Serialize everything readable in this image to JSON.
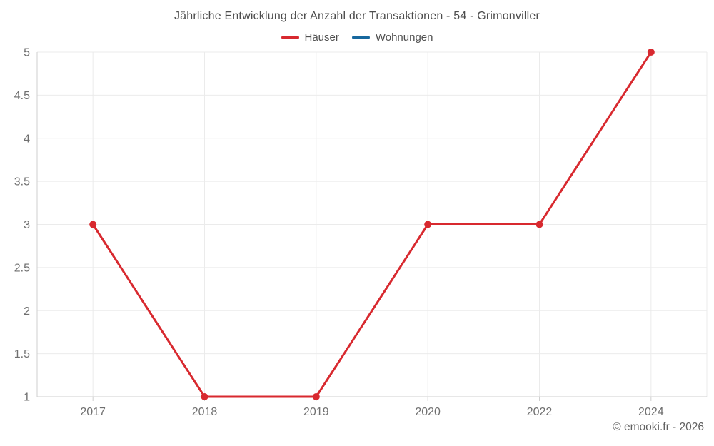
{
  "title": "Jährliche Entwicklung der Anzahl der Transaktionen - 54 - Grimonviller",
  "legend": [
    {
      "label": "Häuser",
      "color": "#d8292f"
    },
    {
      "label": "Wohnungen",
      "color": "#17689e"
    }
  ],
  "chart_data": {
    "type": "line",
    "categories": [
      "2017",
      "2018",
      "2019",
      "2020",
      "2022",
      "2024"
    ],
    "series": [
      {
        "name": "Häuser",
        "color": "#d8292f",
        "values": [
          3,
          1,
          1,
          3,
          3,
          5
        ]
      },
      {
        "name": "Wohnungen",
        "color": "#17689e",
        "values": []
      }
    ],
    "title": "Jährliche Entwicklung der Anzahl der Transaktionen - 54 - Grimonviller",
    "xlabel": "",
    "ylabel": "",
    "ylim": [
      1,
      5
    ],
    "ytick_step": 0.5,
    "grid": true,
    "legend_position": "top",
    "colors": {
      "grid_line": "#ebebeb",
      "axis_line": "#cfcfcf",
      "tick_label": "#6f6f6f"
    }
  },
  "footer": {
    "copyright": "© emooki.fr - 2026"
  }
}
